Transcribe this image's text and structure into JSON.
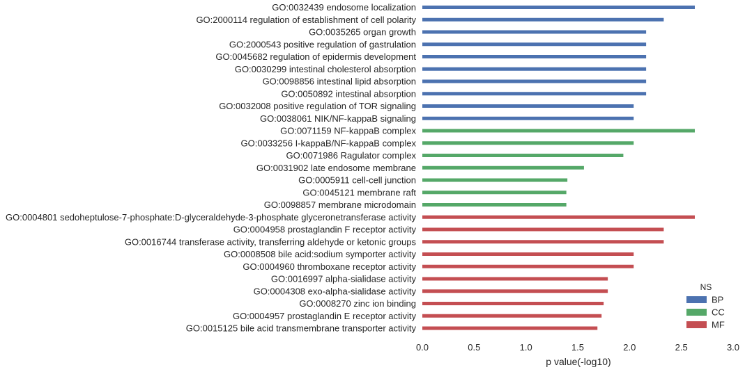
{
  "chart_data": {
    "type": "bar",
    "orientation": "horizontal",
    "xlabel": "p value(-log10)",
    "xlim": [
      0.0,
      3.0
    ],
    "x_ticks": [
      "0.0",
      "0.5",
      "1.0",
      "1.5",
      "2.0",
      "2.5",
      "3.0"
    ],
    "grid": false,
    "legend": {
      "title": "NS",
      "placement": "lower-right",
      "entries": [
        {
          "name": "BP",
          "color": "#4c72b0"
        },
        {
          "name": "CC",
          "color": "#55a868"
        },
        {
          "name": "MF",
          "color": "#c44e52"
        }
      ]
    },
    "categories": [
      "GO:0032439 endosome localization",
      "GO:2000114 regulation of establishment of cell polarity",
      "GO:0035265 organ growth",
      "GO:2000543 positive regulation of gastrulation",
      "GO:0045682 regulation of epidermis development",
      "GO:0030299 intestinal cholesterol absorption",
      "GO:0098856 intestinal lipid absorption",
      "GO:0050892 intestinal absorption",
      "GO:0032008 positive regulation of TOR signaling",
      "GO:0038061 NIK/NF-kappaB signaling",
      "GO:0071159 NF-kappaB complex",
      "GO:0033256 I-kappaB/NF-kappaB complex",
      "GO:0071986 Ragulator complex",
      "GO:0031902 late endosome membrane",
      "GO:0005911 cell-cell junction",
      "GO:0045121 membrane raft",
      "GO:0098857 membrane microdomain",
      "GO:0004801 sedoheptulose-7-phosphate:D-glyceraldehyde-3-phosphate glyceronetransferase activity",
      "GO:0004958 prostaglandin F receptor activity",
      "GO:0016744 transferase activity, transferring aldehyde or ketonic groups",
      "GO:0008508 bile acid:sodium symporter activity",
      "GO:0004960 thromboxane receptor activity",
      "GO:0016997 alpha-sialidase activity",
      "GO:0004308 exo-alpha-sialidase activity",
      "GO:0008270 zinc ion binding",
      "GO:0004957 prostaglandin E receptor activity",
      "GO:0015125 bile acid transmembrane transporter activity"
    ],
    "groups": [
      "BP",
      "BP",
      "BP",
      "BP",
      "BP",
      "BP",
      "BP",
      "BP",
      "BP",
      "BP",
      "CC",
      "CC",
      "CC",
      "CC",
      "CC",
      "CC",
      "CC",
      "MF",
      "MF",
      "MF",
      "MF",
      "MF",
      "MF",
      "MF",
      "MF",
      "MF",
      "MF"
    ],
    "values": [
      2.63,
      2.33,
      2.16,
      2.16,
      2.16,
      2.16,
      2.16,
      2.16,
      2.04,
      2.04,
      2.63,
      2.04,
      1.94,
      1.56,
      1.4,
      1.39,
      1.39,
      2.63,
      2.33,
      2.33,
      2.04,
      2.04,
      1.79,
      1.79,
      1.75,
      1.73,
      1.69
    ]
  }
}
